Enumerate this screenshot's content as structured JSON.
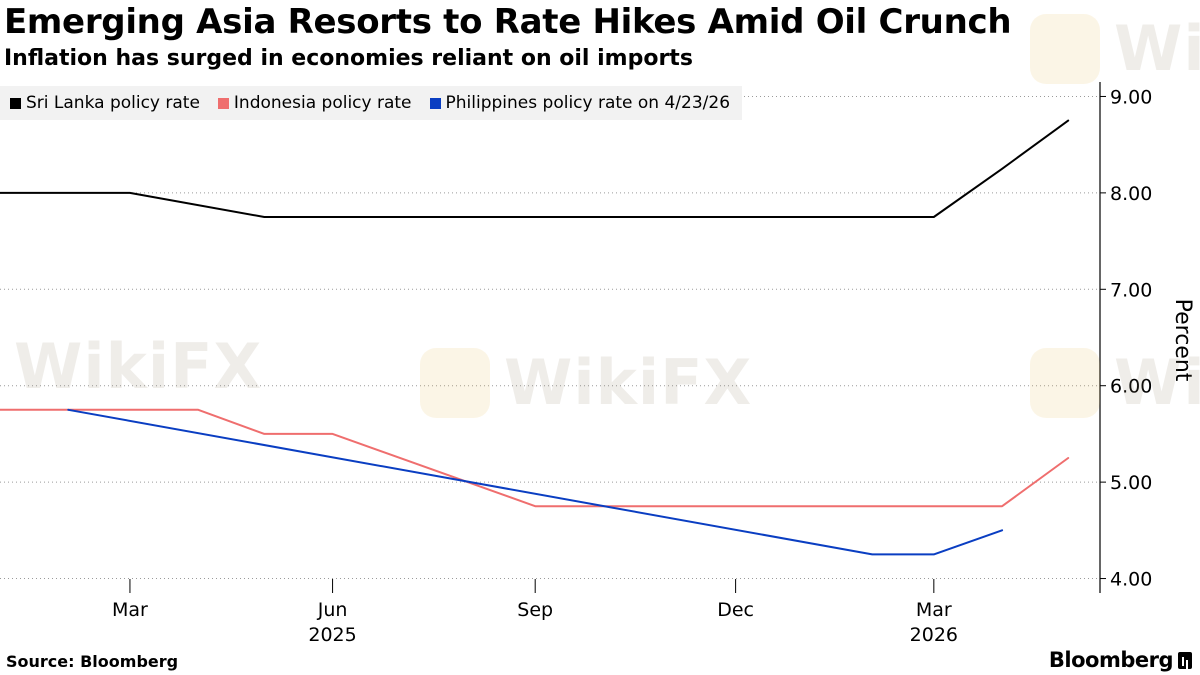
{
  "header": {
    "title": "Emerging Asia Resorts to Rate Hikes Amid Oil Crunch",
    "subtitle": "Inflation has surged in economies reliant on oil imports"
  },
  "legend": [
    {
      "label": "Sri Lanka policy rate",
      "color": "#000000"
    },
    {
      "label": "Indonesia policy rate",
      "color": "#ef6e6e"
    },
    {
      "label": "Philippines policy rate on 4/23/26",
      "color": "#0a3ec2"
    }
  ],
  "footer": {
    "source": "Source: Bloomberg",
    "logo": "Bloomberg"
  },
  "watermark": {
    "text": "WikiFX"
  },
  "chart_data": {
    "type": "line",
    "ylabel": "Percent",
    "ylim": [
      4.0,
      9.0
    ],
    "yticks": [
      4.0,
      5.0,
      6.0,
      7.0,
      8.0,
      9.0
    ],
    "ytick_labels": [
      "4.00",
      "5.00",
      "6.00",
      "7.00",
      "8.00",
      "9.00"
    ],
    "xlim": [
      "2025-01-01",
      "2026-05-10"
    ],
    "xticks": [
      {
        "date": "2025-03-01",
        "label": "Mar",
        "year": ""
      },
      {
        "date": "2025-06-01",
        "label": "Jun",
        "year": "2025"
      },
      {
        "date": "2025-09-01",
        "label": "Sep",
        "year": ""
      },
      {
        "date": "2025-12-01",
        "label": "Dec",
        "year": ""
      },
      {
        "date": "2026-03-01",
        "label": "Mar",
        "year": "2026"
      }
    ],
    "axis_position": "right",
    "grid": "horizontal dotted",
    "legend_position": "top-left",
    "series": [
      {
        "name": "Sri Lanka policy rate",
        "color": "#000000",
        "points": [
          [
            "2025-01-01",
            8.0
          ],
          [
            "2025-03-01",
            8.0
          ],
          [
            "2025-05-01",
            7.75
          ],
          [
            "2026-03-01",
            7.75
          ],
          [
            "2026-04-01",
            8.25
          ],
          [
            "2026-05-01",
            8.75
          ]
        ]
      },
      {
        "name": "Indonesia policy rate",
        "color": "#ef6e6e",
        "points": [
          [
            "2025-01-01",
            5.75
          ],
          [
            "2025-04-01",
            5.75
          ],
          [
            "2025-05-01",
            5.5
          ],
          [
            "2025-06-01",
            5.5
          ],
          [
            "2025-09-01",
            4.75
          ],
          [
            "2026-04-01",
            4.75
          ],
          [
            "2026-05-01",
            5.25
          ]
        ]
      },
      {
        "name": "Philippines policy rate on 4/23/26",
        "color": "#0a3ec2",
        "points": [
          [
            "2025-02-01",
            5.75
          ],
          [
            "2026-02-01",
            4.25
          ],
          [
            "2026-03-01",
            4.25
          ],
          [
            "2026-04-01",
            4.5
          ]
        ]
      }
    ]
  }
}
